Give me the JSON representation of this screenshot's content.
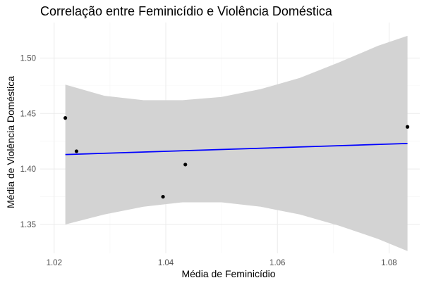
{
  "chart_data": {
    "type": "scatter",
    "title": "Correlação entre Feminicídio e Violência Doméstica",
    "xlabel": "Média de Feminicídio",
    "ylabel": "Média de Violência Doméstica",
    "xlim": [
      1.0175,
      1.0855
    ],
    "ylim": [
      1.324,
      1.532
    ],
    "x_ticks": [
      1.02,
      1.04,
      1.06,
      1.08
    ],
    "x_tick_labels": [
      "1.02",
      "1.04",
      "1.06",
      "1.08"
    ],
    "y_ticks": [
      1.35,
      1.4,
      1.45,
      1.5
    ],
    "y_tick_labels": [
      "1.35",
      "1.40",
      "1.45",
      "1.50"
    ],
    "grid": true,
    "points": [
      {
        "x": 1.022,
        "y": 1.446
      },
      {
        "x": 1.024,
        "y": 1.416
      },
      {
        "x": 1.0395,
        "y": 1.375
      },
      {
        "x": 1.0435,
        "y": 1.404
      },
      {
        "x": 1.0833,
        "y": 1.438
      }
    ],
    "regression": {
      "method": "lm",
      "x": [
        1.022,
        1.0833
      ],
      "y": [
        1.413,
        1.423
      ],
      "color": "#0000ff"
    },
    "confidence_band": {
      "x": [
        1.022,
        1.029,
        1.036,
        1.043,
        1.05,
        1.057,
        1.064,
        1.071,
        1.078,
        1.0833
      ],
      "upper": [
        1.476,
        1.466,
        1.462,
        1.462,
        1.465,
        1.472,
        1.482,
        1.496,
        1.511,
        1.52
      ],
      "lower": [
        1.35,
        1.359,
        1.366,
        1.37,
        1.37,
        1.366,
        1.359,
        1.349,
        1.337,
        1.326
      ],
      "color": "#d3d3d3"
    },
    "point_color": "#000000",
    "panel_background": "#ffffff"
  }
}
